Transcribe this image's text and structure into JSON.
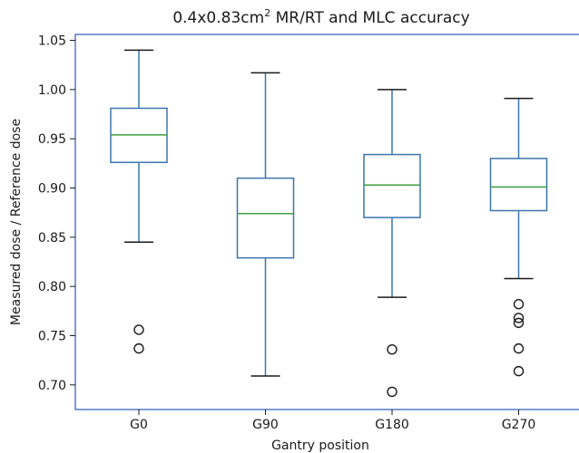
{
  "chart_data": {
    "type": "box",
    "title": "0.4x0.83cm",
    "title_sup": "2",
    "title_suffix": " MR/RT and MLC accuracy",
    "xlabel": "Gantry position",
    "ylabel": "Measured dose / Reference dose",
    "ylim": [
      0.675,
      1.056
    ],
    "yticks": [
      "0.70",
      "0.75",
      "0.80",
      "0.85",
      "0.90",
      "0.95",
      "1.00",
      "1.05"
    ],
    "yticks_values": [
      0.7,
      0.75,
      0.8,
      0.85,
      0.9,
      0.95,
      1.0,
      1.05
    ],
    "categories": [
      "G0",
      "G90",
      "G180",
      "G270"
    ],
    "boxes": [
      {
        "whisker_low": 0.845,
        "q1": 0.926,
        "median": 0.954,
        "q3": 0.981,
        "whisker_high": 1.04,
        "outliers": [
          0.756,
          0.737
        ]
      },
      {
        "whisker_low": 0.709,
        "q1": 0.829,
        "median": 0.874,
        "q3": 0.91,
        "whisker_high": 1.017,
        "outliers": []
      },
      {
        "whisker_low": 0.789,
        "q1": 0.87,
        "median": 0.903,
        "q3": 0.934,
        "whisker_high": 1.0,
        "outliers": [
          0.736,
          0.693
        ]
      },
      {
        "whisker_low": 0.808,
        "q1": 0.877,
        "median": 0.901,
        "q3": 0.93,
        "whisker_high": 0.991,
        "outliers": [
          0.782,
          0.768,
          0.763,
          0.737,
          0.714
        ]
      }
    ],
    "colors": {
      "box": "#3b75b0",
      "median": "#3f9f3f",
      "whisker_cap": "#1a1a1a",
      "frame": "#2a55c0",
      "outlier": "#1a1a1a"
    },
    "grid": false
  }
}
